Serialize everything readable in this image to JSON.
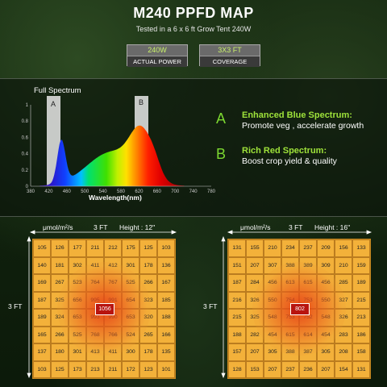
{
  "header": {
    "title": "M240 PPFD MAP",
    "subtitle": "Tested in a 6 x 6 ft Grow Tent 240W"
  },
  "badges": [
    {
      "value": "240W",
      "label": "ACTUAL POWER"
    },
    {
      "value": "3X3 FT",
      "label": "COVERAGE"
    }
  ],
  "spectrum": {
    "title": "Full Spectrum",
    "xlabel": "Wavelength(nm)",
    "x_ticks": [
      "380",
      "420",
      "460",
      "500",
      "540",
      "580",
      "620",
      "660",
      "700",
      "740",
      "780"
    ],
    "y_ticks": [
      "1",
      "0.8",
      "0.6",
      "0.4",
      "0.2",
      "0"
    ],
    "band_a": "A",
    "band_b": "B"
  },
  "features": [
    {
      "letter": "A",
      "heading": "Enhanced Blue Spectrum:",
      "desc": "Promote veg , accelerate growth"
    },
    {
      "letter": "B",
      "heading": "Rich Red Spectrum:",
      "desc": "Boost crop yield & quality"
    }
  ],
  "map_left": {
    "unit": "μmol/m²/s",
    "width_label": "3 FT",
    "height_label": "Height : 12\"",
    "side_label": "3 FT",
    "center": "1056",
    "rows": [
      [
        "105",
        "126",
        "177",
        "211",
        "212",
        "175",
        "125",
        "103"
      ],
      [
        "140",
        "181",
        "302",
        "411",
        "412",
        "301",
        "178",
        "136"
      ],
      [
        "169",
        "267",
        "523",
        "764",
        "767",
        "525",
        "266",
        "167"
      ],
      [
        "187",
        "325",
        "656",
        "995",
        "991",
        "654",
        "323",
        "185"
      ],
      [
        "189",
        "324",
        "653",
        "993",
        "990",
        "653",
        "320",
        "188"
      ],
      [
        "165",
        "266",
        "525",
        "768",
        "766",
        "524",
        "265",
        "166"
      ],
      [
        "137",
        "180",
        "301",
        "413",
        "411",
        "300",
        "178",
        "135"
      ],
      [
        "103",
        "125",
        "173",
        "213",
        "211",
        "172",
        "123",
        "101"
      ]
    ]
  },
  "map_right": {
    "unit": "μmol/m²/s",
    "width_label": "3 FT",
    "height_label": "Height : 16\"",
    "side_label": "3 FT",
    "center": "802",
    "rows": [
      [
        "131",
        "155",
        "210",
        "234",
        "237",
        "209",
        "156",
        "133"
      ],
      [
        "151",
        "207",
        "307",
        "388",
        "389",
        "309",
        "210",
        "159"
      ],
      [
        "187",
        "284",
        "456",
        "613",
        "615",
        "456",
        "285",
        "189"
      ],
      [
        "216",
        "326",
        "550",
        "754",
        "753",
        "550",
        "327",
        "215"
      ],
      [
        "215",
        "325",
        "548",
        "753",
        "752",
        "548",
        "326",
        "213"
      ],
      [
        "188",
        "282",
        "454",
        "615",
        "614",
        "454",
        "283",
        "186"
      ],
      [
        "157",
        "207",
        "305",
        "388",
        "387",
        "305",
        "208",
        "158"
      ],
      [
        "128",
        "153",
        "207",
        "237",
        "236",
        "207",
        "154",
        "131"
      ]
    ]
  }
}
